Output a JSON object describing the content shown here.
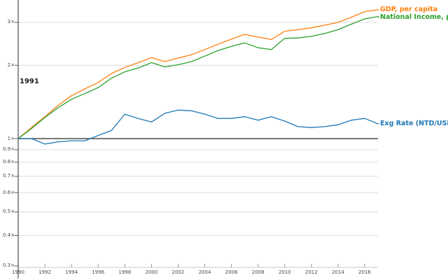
{
  "chart_data": {
    "type": "line",
    "title": "",
    "xlabel": "",
    "ylabel": "",
    "x_range": [
      1990,
      2017
    ],
    "y_scale": "log",
    "grid": true,
    "baseline_value": 1,
    "annotation": "1991",
    "x": [
      1990,
      1991,
      1992,
      1993,
      1994,
      1995,
      1996,
      1997,
      1998,
      1999,
      2000,
      2001,
      2002,
      2003,
      2004,
      2005,
      2006,
      2007,
      2008,
      2009,
      2010,
      2011,
      2012,
      2013,
      2014,
      2015,
      2016,
      2017
    ],
    "x_tick_labels": [
      "1990",
      "1992",
      "1994",
      "1996",
      "1998",
      "2000",
      "2002",
      "2004",
      "2006",
      "2008",
      "2010",
      "2012",
      "2014",
      "2016"
    ],
    "x_tick_values": [
      1990,
      1992,
      1994,
      1996,
      1998,
      2000,
      2002,
      2004,
      2006,
      2008,
      2010,
      2012,
      2014,
      2016
    ],
    "y_tick_labels": [
      "3×",
      "2×",
      "1×",
      "0.9×",
      "0.8×",
      "0.7×",
      "0.6×",
      "0.5×",
      "0.4×",
      "0.3×"
    ],
    "y_tick_values": [
      3,
      2,
      1,
      0.9,
      0.8,
      0.7,
      0.6,
      0.5,
      0.4,
      0.3
    ],
    "legend_position": "line-end-labels-right",
    "series": [
      {
        "name": "GDP, per capita",
        "color": "#ff7f0e",
        "values": [
          1.0,
          1.11,
          1.23,
          1.37,
          1.5,
          1.6,
          1.7,
          1.85,
          1.96,
          2.05,
          2.15,
          2.07,
          2.14,
          2.21,
          2.32,
          2.44,
          2.56,
          2.68,
          2.61,
          2.55,
          2.76,
          2.8,
          2.85,
          2.92,
          3.0,
          3.15,
          3.32,
          3.38
        ]
      },
      {
        "name": "National Income, per",
        "color": "#2ca02c",
        "values": [
          1.0,
          1.1,
          1.22,
          1.34,
          1.45,
          1.53,
          1.62,
          1.77,
          1.88,
          1.95,
          2.05,
          1.97,
          2.01,
          2.07,
          2.18,
          2.3,
          2.39,
          2.47,
          2.36,
          2.32,
          2.58,
          2.59,
          2.63,
          2.7,
          2.8,
          2.95,
          3.1,
          3.17
        ]
      },
      {
        "name": "Exg Rate (NTD/USD)",
        "color": "#1f77b4",
        "values": [
          1.0,
          1.0,
          0.95,
          0.97,
          0.98,
          0.98,
          1.03,
          1.08,
          1.26,
          1.21,
          1.17,
          1.27,
          1.31,
          1.3,
          1.26,
          1.21,
          1.21,
          1.23,
          1.19,
          1.23,
          1.18,
          1.12,
          1.11,
          1.12,
          1.14,
          1.19,
          1.21,
          1.15
        ]
      }
    ],
    "colors": {
      "grid": "#dcdcdc",
      "baseline": "#4d4d4d",
      "axis": "#5a5a5a",
      "tick_text": "#494949"
    }
  }
}
